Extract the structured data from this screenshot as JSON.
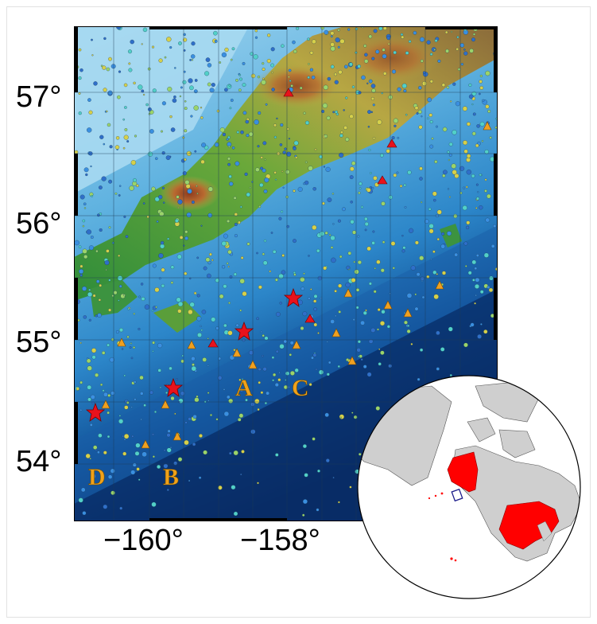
{
  "map": {
    "lat_labels": [
      "57°",
      "56°",
      "55°",
      "54°"
    ],
    "lon_labels": [
      "−160°",
      "−158°"
    ],
    "region_labels": [
      "A",
      "B",
      "C",
      "D"
    ]
  },
  "colors": {
    "land_low": "#2f8f3a",
    "land_mid": "#b8a640",
    "land_high": "#9c4a24",
    "shallow_water": "#7fc6e8",
    "deep_water": "#0a2f6a",
    "star": "#e8121c",
    "triangle_volcano": "#f0a020",
    "globe_highlight": "#ff0000",
    "label_orange": "#f0a11a"
  },
  "symbols": {
    "stars": "large earthquakes (red stars)",
    "triangles": "volcanoes"
  }
}
